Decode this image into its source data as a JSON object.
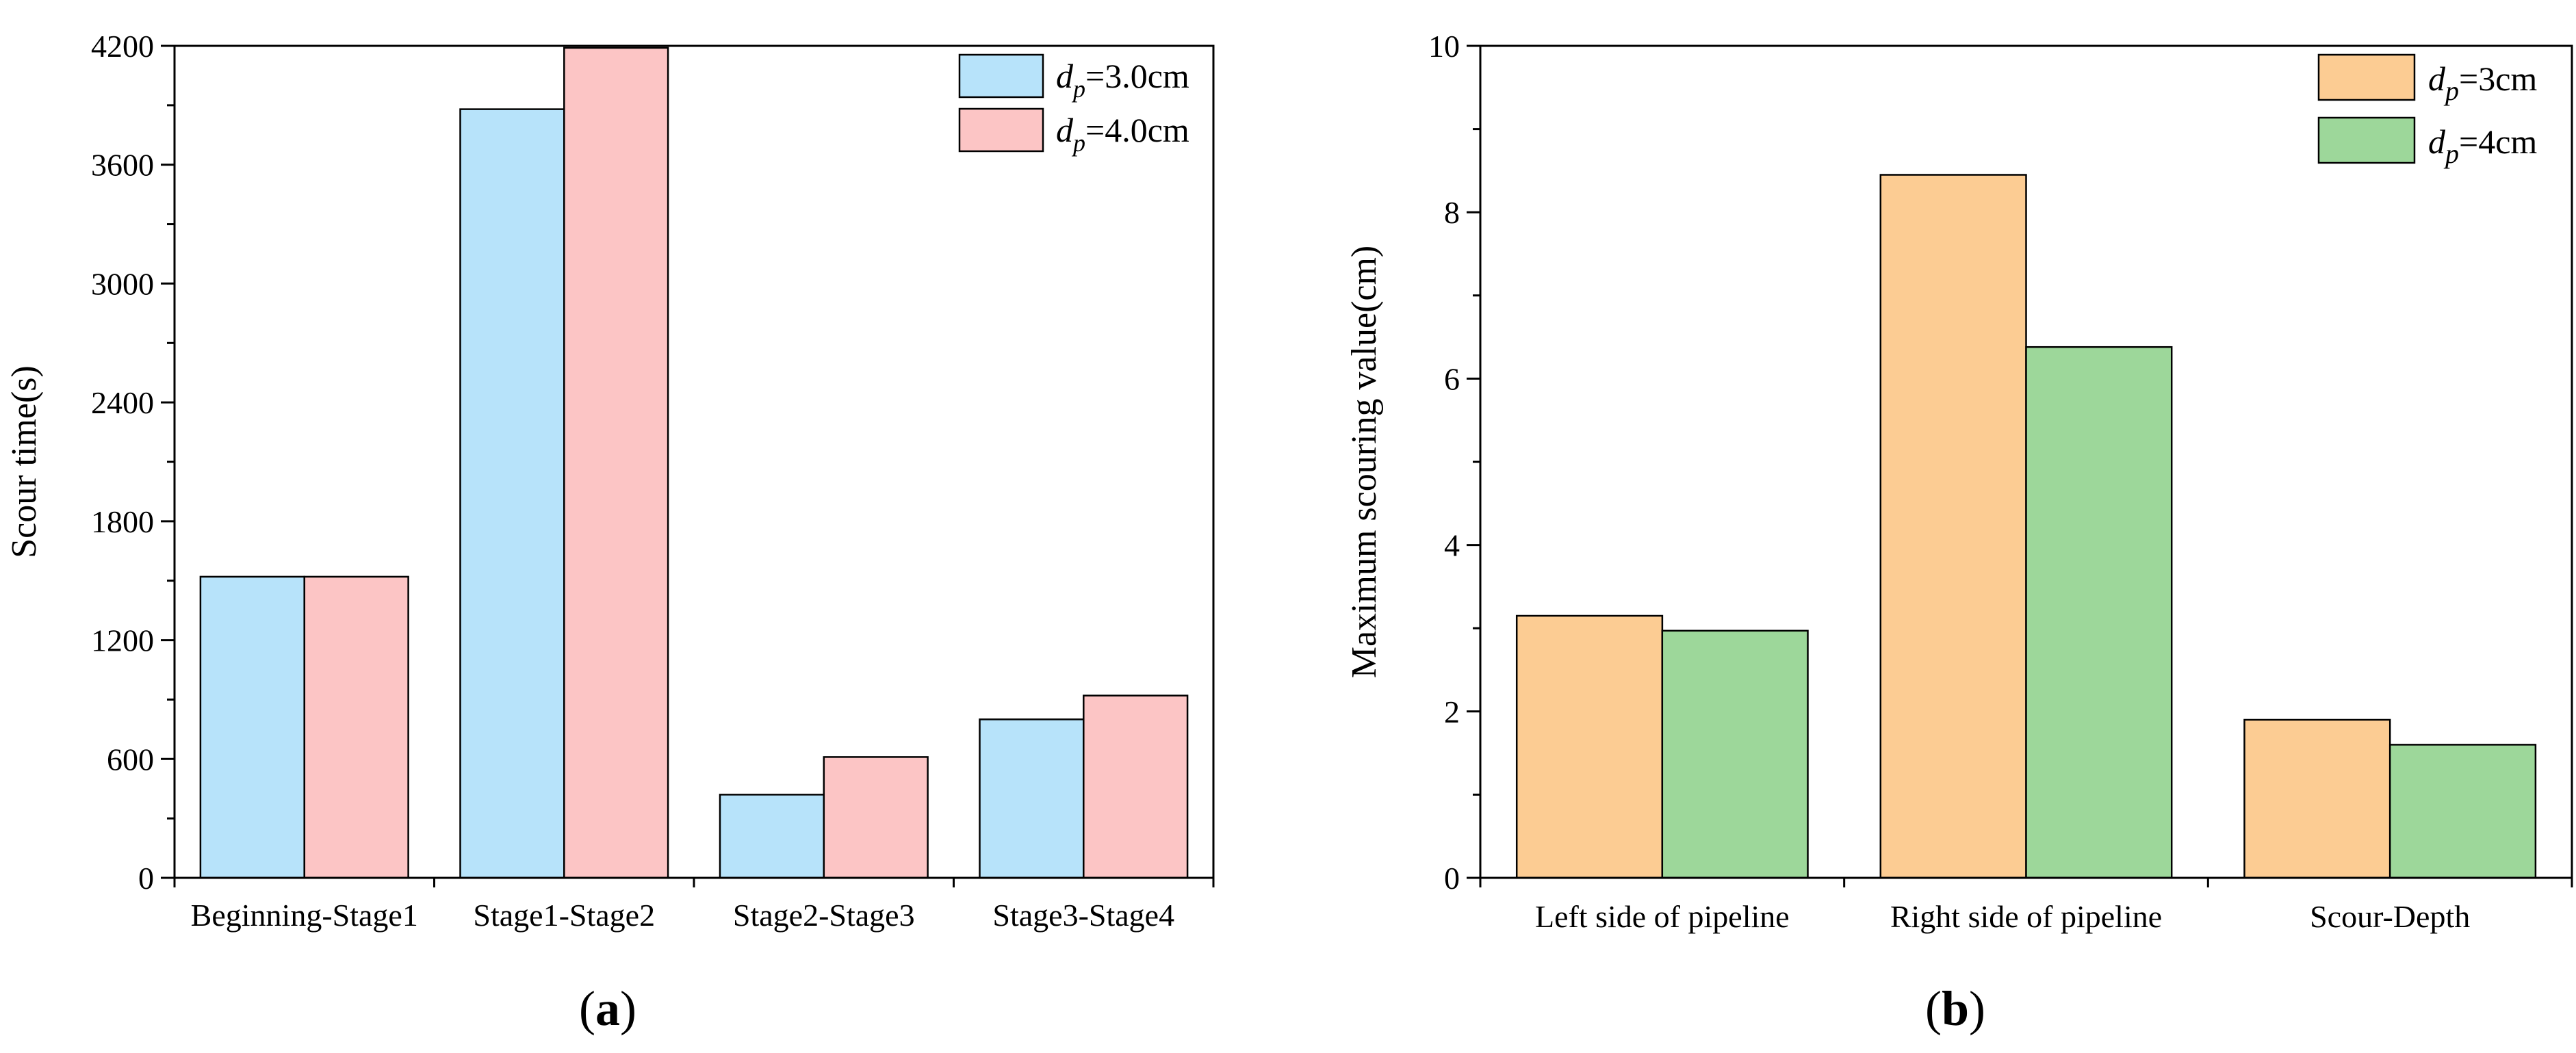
{
  "chart_data": [
    {
      "panel": "a",
      "type": "bar",
      "title": "",
      "xlabel": "",
      "ylabel": "Scour time(s)",
      "ylim": [
        0,
        4200
      ],
      "yticks": [
        0,
        600,
        1200,
        1800,
        2400,
        3000,
        3600,
        4200
      ],
      "ytick_labels": [
        "0",
        "600",
        "1200",
        "1800",
        "2400",
        "3000",
        "3600",
        "4200"
      ],
      "categories": [
        "Beginning-Stage1",
        "Stage1-Stage2",
        "Stage2-Stage3",
        "Stage3-Stage4"
      ],
      "series": [
        {
          "name": "d_p=3.0cm",
          "label_main": "d",
          "label_sub": "p",
          "label_rest": "=3.0cm",
          "color": "#b7e3fa",
          "values": [
            1520,
            3880,
            420,
            800
          ]
        },
        {
          "name": "d_p=4.0cm",
          "label_main": "d",
          "label_sub": "p",
          "label_rest": "=4.0cm",
          "color": "#fcc5c5",
          "values": [
            1520,
            4190,
            610,
            920
          ]
        }
      ],
      "legend": "top-right",
      "grid": false
    },
    {
      "panel": "b",
      "type": "bar",
      "title": "",
      "xlabel": "",
      "ylabel": "Maximum scouring value(cm)",
      "ylim": [
        0,
        10
      ],
      "yticks": [
        0,
        2,
        4,
        6,
        8,
        10
      ],
      "ytick_labels": [
        "0",
        "2",
        "4",
        "6",
        "8",
        "10"
      ],
      "categories": [
        "Left side of pipeline",
        "Right side of pipeline",
        "Scour-Depth"
      ],
      "series": [
        {
          "name": "d_p=3cm",
          "label_main": "d",
          "label_sub": "p",
          "label_rest": "=3cm",
          "color": "#fccc93",
          "values": [
            3.15,
            8.45,
            1.9
          ]
        },
        {
          "name": "d_p=4cm",
          "label_main": "d",
          "label_sub": "p",
          "label_rest": "=4cm",
          "color": "#9dd79a",
          "values": [
            2.97,
            6.38,
            1.6
          ]
        }
      ],
      "legend": "top-right",
      "grid": false
    }
  ],
  "panel_labels": [
    "(a)",
    "(b)"
  ]
}
